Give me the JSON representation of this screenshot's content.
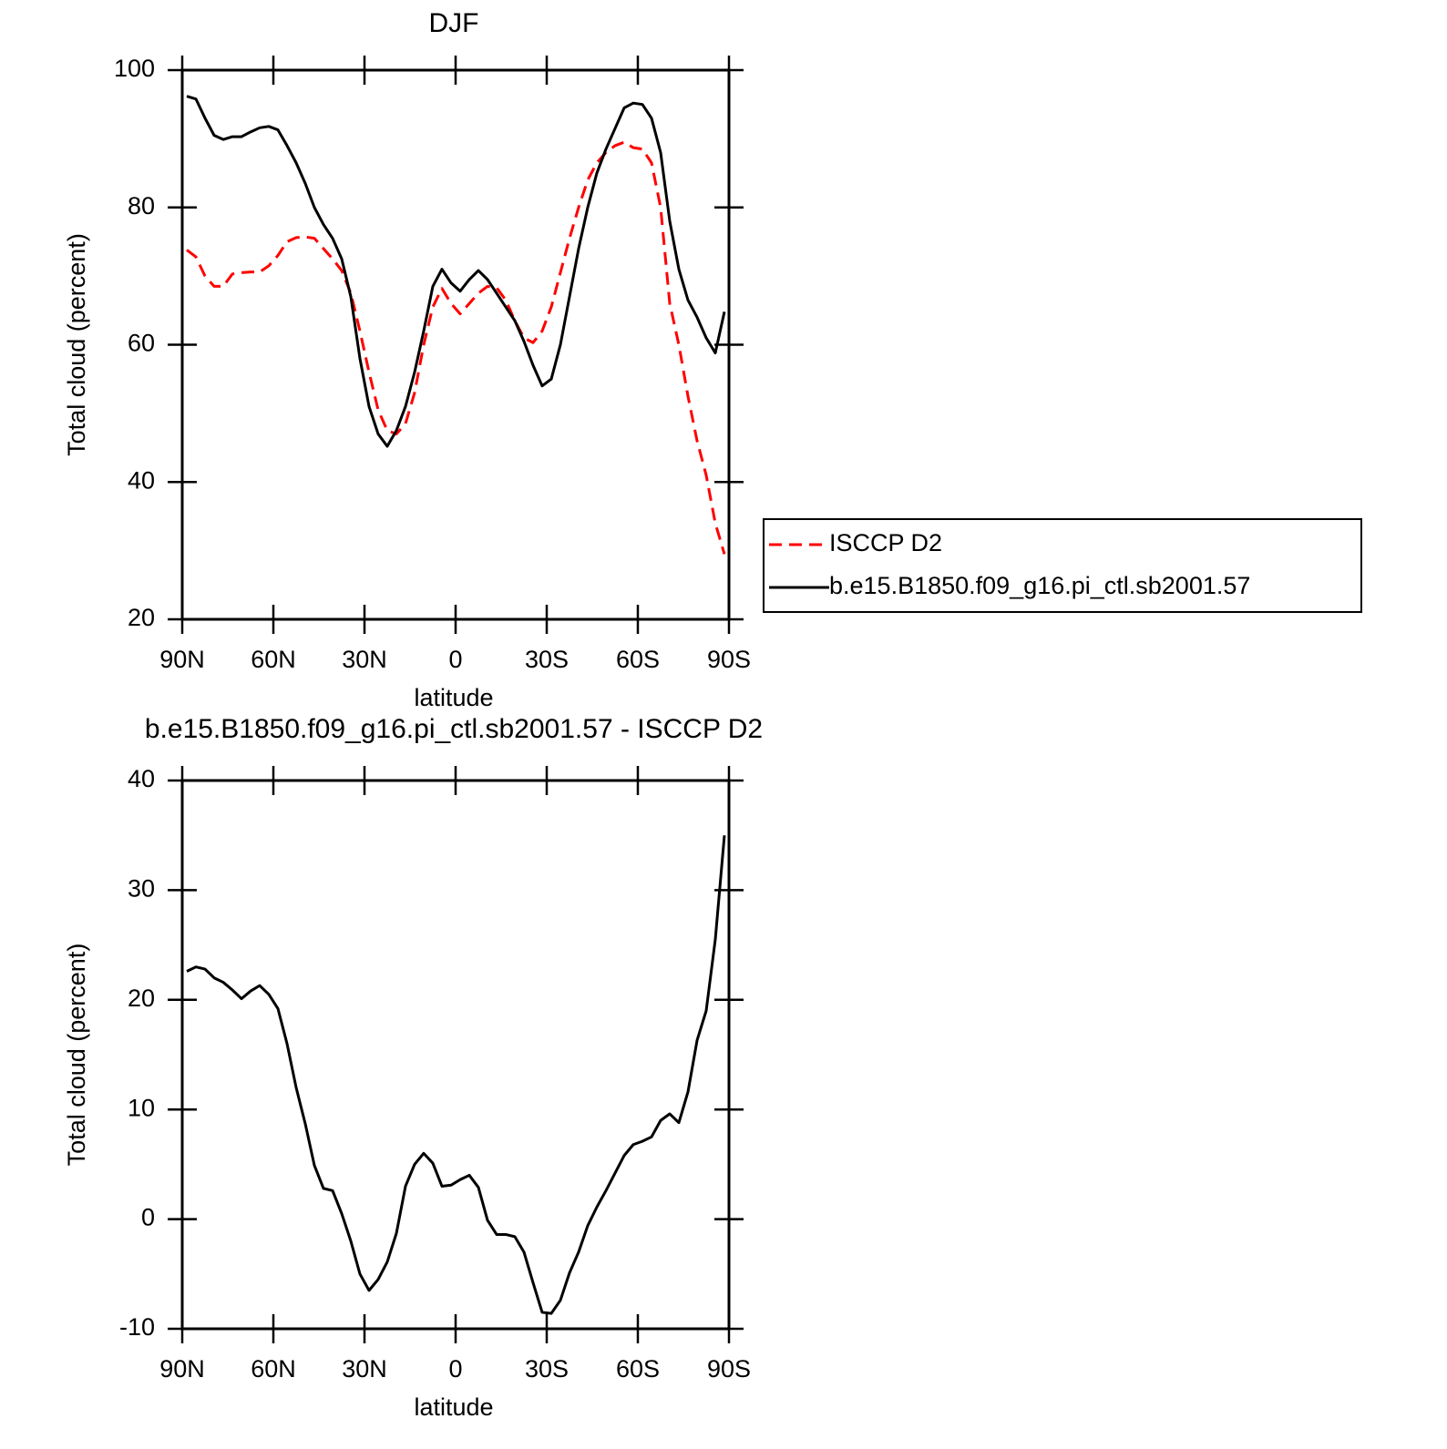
{
  "chart_data": [
    {
      "type": "line",
      "title": "DJF",
      "xlabel": "latitude",
      "ylabel": "Total cloud (percent)",
      "x": [
        88.5,
        85.5,
        82.5,
        79.5,
        76.5,
        73.5,
        70.5,
        67.5,
        64.5,
        61.5,
        58.5,
        55.5,
        52.5,
        49.5,
        46.5,
        43.5,
        40.5,
        37.5,
        34.5,
        31.5,
        28.5,
        25.5,
        22.5,
        19.5,
        16.5,
        13.5,
        10.5,
        7.5,
        4.5,
        1.5,
        -1.5,
        -4.5,
        -7.5,
        -10.5,
        -13.5,
        -16.5,
        -19.5,
        -22.5,
        -25.5,
        -28.5,
        -31.5,
        -34.5,
        -37.5,
        -40.5,
        -43.5,
        -46.5,
        -49.5,
        -52.5,
        -55.5,
        -58.5,
        -61.5,
        -64.5,
        -67.5,
        -70.5,
        -73.5,
        -76.5,
        -79.5,
        -82.5,
        -85.5,
        -88.5
      ],
      "xlim": [
        90,
        -90
      ],
      "xticks": [
        {
          "value": 90,
          "label": "90N"
        },
        {
          "value": 60,
          "label": "60N"
        },
        {
          "value": 30,
          "label": "30N"
        },
        0,
        {
          "value": -30,
          "label": "30S"
        },
        {
          "value": -60,
          "label": "60S"
        },
        {
          "value": -90,
          "label": "90S"
        }
      ],
      "ylim": [
        20,
        100
      ],
      "yticks": [
        20,
        40,
        60,
        80,
        100
      ],
      "legend": "right",
      "series": [
        {
          "name": "ISCCP D2",
          "color": "#ff0000",
          "dash": "dashed",
          "values": [
            73.8,
            72.8,
            70,
            68.5,
            68.5,
            70.3,
            70.5,
            70.6,
            70.6,
            71.5,
            73,
            75,
            75.6,
            75.7,
            75.5,
            74,
            72.5,
            70.8,
            67.5,
            62,
            56,
            50.5,
            47.5,
            47,
            48.5,
            53,
            60,
            65.5,
            68.2,
            66,
            64.5,
            66,
            67.5,
            68.5,
            68.3,
            66.5,
            63.5,
            61,
            60.3,
            62,
            65.5,
            70.5,
            75.5,
            80,
            84,
            86.5,
            88,
            89,
            89.5,
            88.7,
            88.5,
            86.5,
            80,
            66,
            60,
            52.5,
            46,
            41,
            34,
            29.5
          ]
        },
        {
          "name": "b.e15.B1850.f09_g16.pi_ctl.sb2001.57",
          "color": "#000000",
          "dash": "solid",
          "values": [
            96.2,
            95.8,
            93,
            90.5,
            89.9,
            90.3,
            90.3,
            91,
            91.6,
            91.8,
            91.3,
            89,
            86.5,
            83.5,
            80,
            77.5,
            75.5,
            72.5,
            67,
            58,
            51,
            47,
            45.2,
            47.5,
            51,
            56,
            62,
            68.5,
            71,
            69,
            67.8,
            69.5,
            70.8,
            69.5,
            67.5,
            65.5,
            63.5,
            60.5,
            57,
            54,
            55,
            60,
            67,
            74,
            80,
            85,
            88.5,
            91.5,
            94.5,
            95.2,
            95,
            93,
            88,
            78,
            71,
            66.5,
            64,
            61,
            58.8,
            64.8
          ]
        }
      ]
    },
    {
      "type": "line",
      "title": "b.e15.B1850.f09_g16.pi_ctl.sb2001.57 - ISCCP D2",
      "xlabel": "latitude",
      "ylabel": "Total cloud (percent)",
      "x": [
        88.5,
        85.5,
        82.5,
        79.5,
        76.5,
        73.5,
        70.5,
        67.5,
        64.5,
        61.5,
        58.5,
        55.5,
        52.5,
        49.5,
        46.5,
        43.5,
        40.5,
        37.5,
        34.5,
        31.5,
        28.5,
        25.5,
        22.5,
        19.5,
        16.5,
        13.5,
        10.5,
        7.5,
        4.5,
        1.5,
        -1.5,
        -4.5,
        -7.5,
        -10.5,
        -13.5,
        -16.5,
        -19.5,
        -22.5,
        -25.5,
        -28.5,
        -31.5,
        -34.5,
        -37.5,
        -40.5,
        -43.5,
        -46.5,
        -49.5,
        -52.5,
        -55.5,
        -58.5,
        -61.5,
        -64.5,
        -67.5,
        -70.5,
        -73.5,
        -76.5,
        -79.5,
        -82.5,
        -85.5,
        -88.5
      ],
      "xlim": [
        90,
        -90
      ],
      "xticks": [
        {
          "value": 90,
          "label": "90N"
        },
        {
          "value": 60,
          "label": "60N"
        },
        {
          "value": 30,
          "label": "30N"
        },
        0,
        {
          "value": -30,
          "label": "30S"
        },
        {
          "value": -60,
          "label": "60S"
        },
        {
          "value": -90,
          "label": "90S"
        }
      ],
      "ylim": [
        -10,
        40
      ],
      "yticks": [
        -10,
        0,
        10,
        20,
        30,
        40
      ],
      "series": [
        {
          "color": "#000000",
          "dash": "solid",
          "values": [
            22.6,
            23,
            22.8,
            22,
            21.6,
            20.9,
            20.1,
            20.8,
            21.3,
            20.5,
            19.2,
            16,
            12,
            8.7,
            4.9,
            2.8,
            2.6,
            0.5,
            -2,
            -5,
            -6.5,
            -5.5,
            -3.9,
            -1.3,
            3,
            5,
            6,
            5.1,
            3,
            3.1,
            3.6,
            4,
            2.9,
            -0.1,
            -1.4,
            -1.4,
            -1.6,
            -3,
            -5.8,
            -8.5,
            -8.6,
            -7.4,
            -4.9,
            -3,
            -0.6,
            1.1,
            2.6,
            4.2,
            5.8,
            6.8,
            7.1,
            7.5,
            9,
            9.6,
            8.8,
            11.6,
            16.3,
            19,
            25.5,
            35
          ]
        }
      ]
    }
  ]
}
